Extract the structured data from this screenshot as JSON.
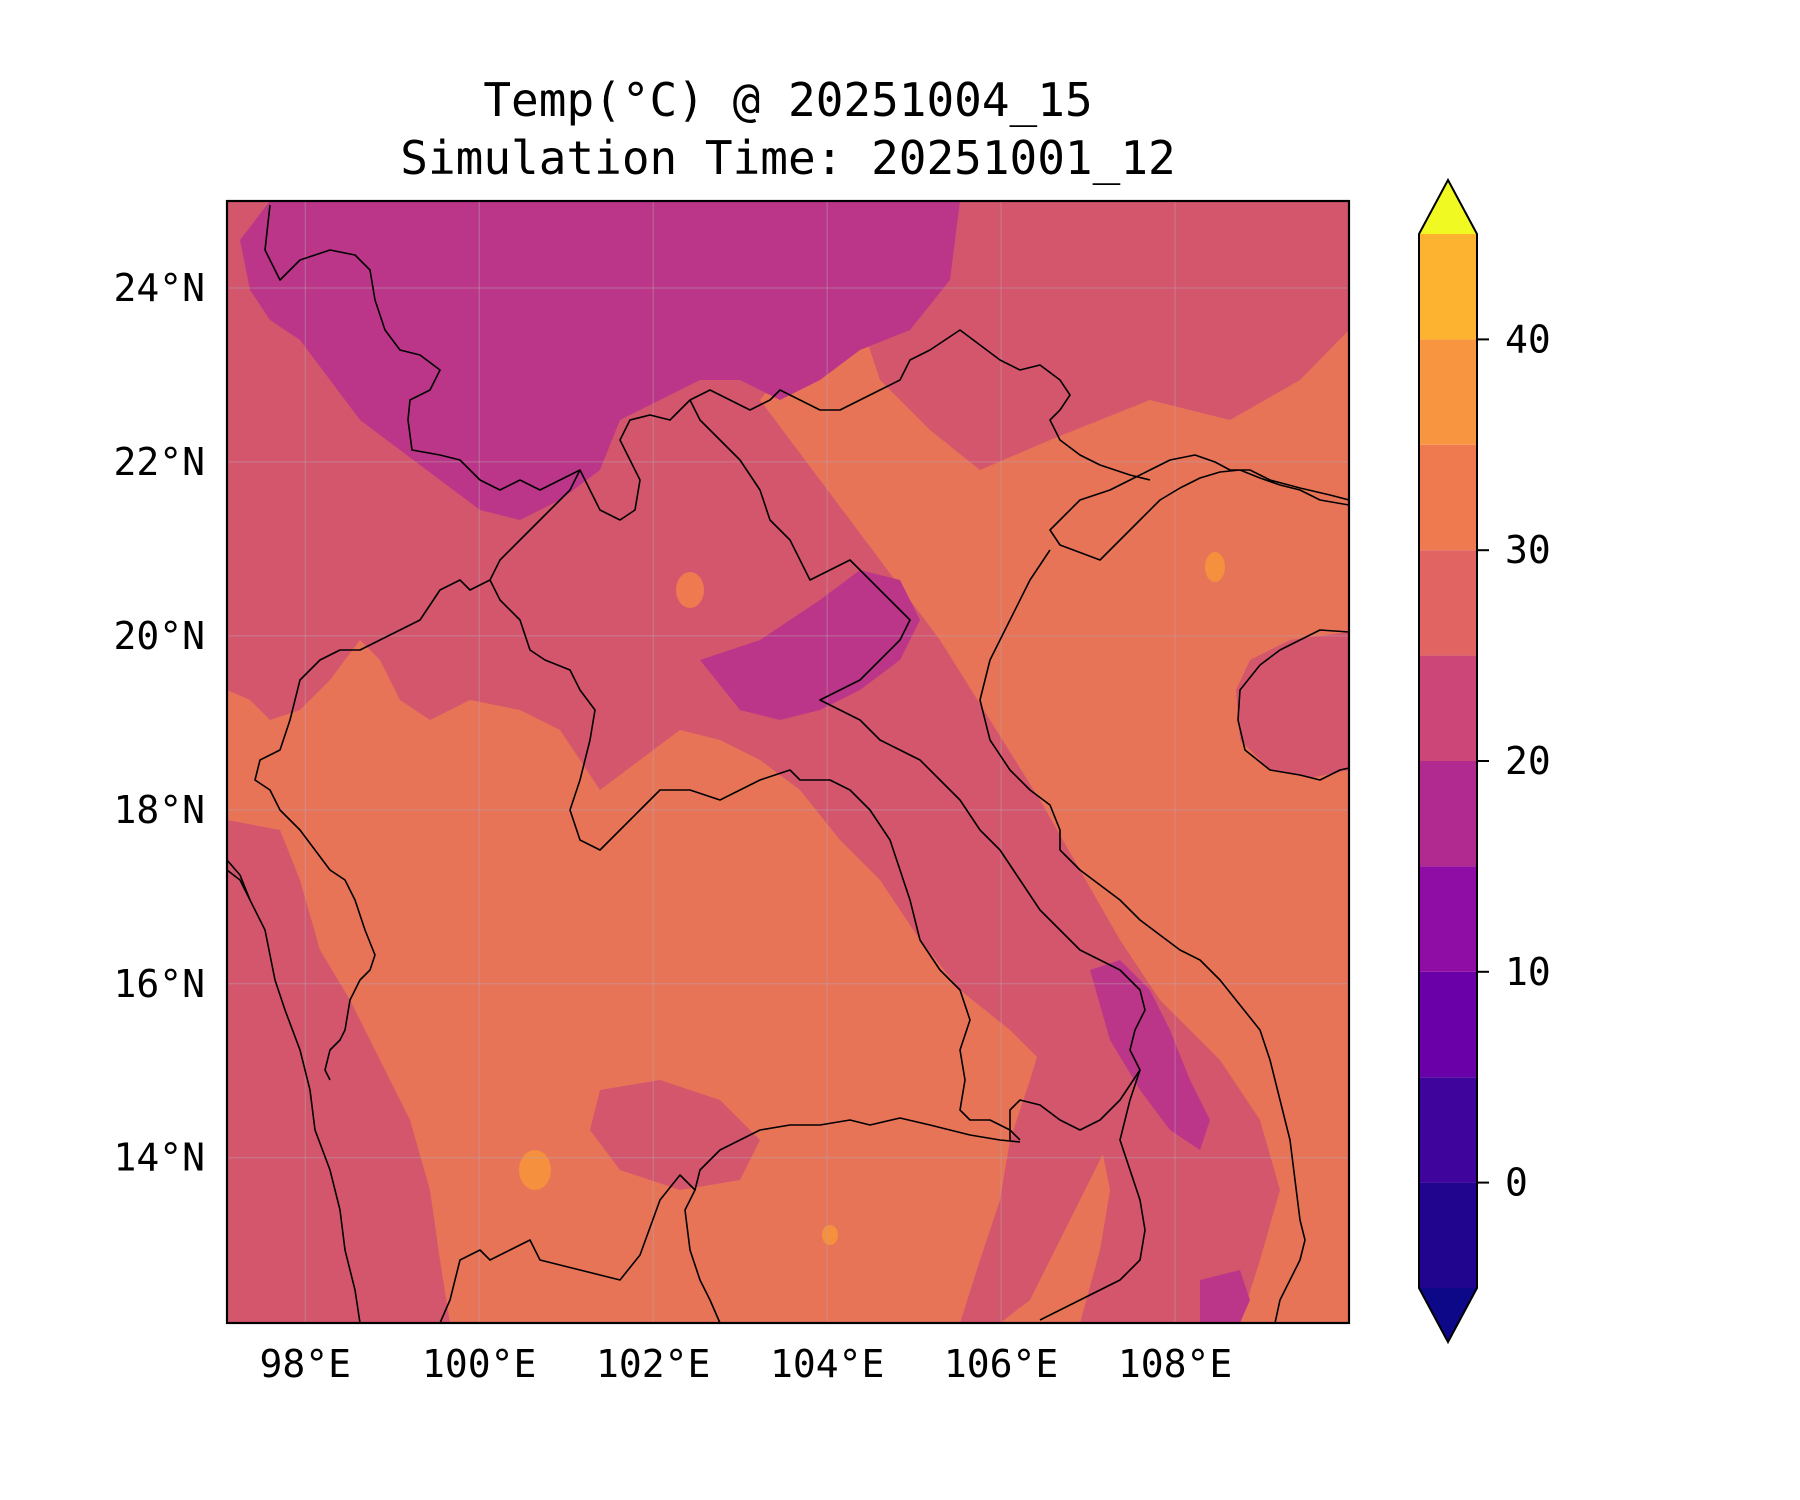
{
  "title": {
    "line1": "Temp(°C) @ 20251004_15",
    "line2": "Simulation Time: 20251001_12"
  },
  "map": {
    "lon_range": [
      97.1,
      110.0
    ],
    "lat_range": [
      12.1,
      25.0
    ],
    "x_ticks": [
      {
        "value": 98,
        "label": "98°E"
      },
      {
        "value": 100,
        "label": "100°E"
      },
      {
        "value": 102,
        "label": "102°E"
      },
      {
        "value": 104,
        "label": "104°E"
      },
      {
        "value": 106,
        "label": "106°E"
      },
      {
        "value": 108,
        "label": "108°E"
      }
    ],
    "y_ticks": [
      {
        "value": 24,
        "label": "24°N"
      },
      {
        "value": 22,
        "label": "22°N"
      },
      {
        "value": 20,
        "label": "20°N"
      },
      {
        "value": 18,
        "label": "18°N"
      },
      {
        "value": 16,
        "label": "16°N"
      },
      {
        "value": 14,
        "label": "14°N"
      }
    ],
    "gridlines": true,
    "variable": "Temp(°C)"
  },
  "colorbar": {
    "min": -5,
    "max": 45,
    "extend": "both",
    "levels": [
      -5,
      0,
      5,
      10,
      15,
      20,
      25,
      30,
      35,
      40,
      45
    ],
    "colors": [
      "#22058f",
      "#3e049b",
      "#6a00a8",
      "#8f0da4",
      "#b12a90",
      "#cc4778",
      "#e16462",
      "#ef7a50",
      "#f89540",
      "#fdb32f",
      "#f0f921"
    ],
    "under_color": "#0d0887",
    "over_color": "#f0f921",
    "ticks": [
      {
        "value": 0,
        "label": "0"
      },
      {
        "value": 10,
        "label": "10"
      },
      {
        "value": 20,
        "label": "20"
      },
      {
        "value": 30,
        "label": "30"
      },
      {
        "value": 40,
        "label": "40"
      }
    ]
  }
}
